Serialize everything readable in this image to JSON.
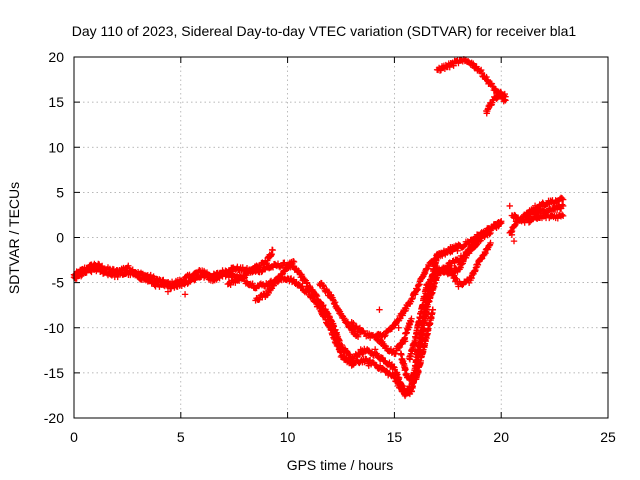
{
  "chart_data": {
    "type": "scatter",
    "title": "Day 110 of 2023, Sidereal Day-to-day VTEC variation (SDTVAR) for receiver bla1",
    "xlabel": "GPS time / hours",
    "ylabel": "SDTVAR / TECUs",
    "xlim": [
      0,
      25
    ],
    "ylim": [
      -20,
      20
    ],
    "xticks": [
      "0",
      "5",
      "10",
      "15",
      "20",
      "25"
    ],
    "yticks": [
      "-20",
      "-15",
      "-10",
      "-5",
      "0",
      "5",
      "10",
      "15",
      "20"
    ],
    "grid": true,
    "marker": "+",
    "series": [
      {
        "name": "SDTVAR",
        "color": "#ff0000",
        "tracks": [
          [
            [
              0,
              -4.2
            ],
            [
              0.5,
              -3.5
            ],
            [
              1,
              -3
            ],
            [
              1.5,
              -3.5
            ],
            [
              2,
              -3.8
            ],
            [
              2.5,
              -3.3
            ],
            [
              3,
              -4
            ],
            [
              3.5,
              -4.3
            ],
            [
              4,
              -4.8
            ],
            [
              4.5,
              -5.2
            ],
            [
              5,
              -4.8
            ],
            [
              5.5,
              -4.2
            ],
            [
              6,
              -3.7
            ],
            [
              6.5,
              -4.3
            ],
            [
              7,
              -3.8
            ],
            [
              7.5,
              -3.4
            ],
            [
              8,
              -3.6
            ],
            [
              8.5,
              -3.8
            ],
            [
              9,
              -3.4
            ],
            [
              9.5,
              -3.1
            ],
            [
              10,
              -3
            ],
            [
              10.5,
              -3.8
            ],
            [
              11,
              -5.5
            ],
            [
              11.5,
              -7
            ],
            [
              12,
              -9
            ],
            [
              12.5,
              -12
            ],
            [
              13,
              -13.5
            ],
            [
              13.5,
              -12.5
            ],
            [
              14,
              -12.8
            ],
            [
              14.5,
              -13.5
            ],
            [
              15,
              -14.5
            ],
            [
              15.5,
              -17.2
            ],
            [
              15.8,
              -16.5
            ],
            [
              16,
              -14
            ],
            [
              16.5,
              -7
            ],
            [
              17,
              -2
            ],
            [
              18,
              -1.2
            ],
            [
              19,
              0.3
            ],
            [
              20,
              1.6
            ]
          ],
          [
            [
              0,
              -4.6
            ],
            [
              0.5,
              -3.9
            ],
            [
              1,
              -3.5
            ],
            [
              1.5,
              -3.9
            ],
            [
              2,
              -4.2
            ],
            [
              2.5,
              -3.9
            ],
            [
              3,
              -4.3
            ],
            [
              3.5,
              -4.8
            ],
            [
              4,
              -5.4
            ],
            [
              4.5,
              -5.4
            ],
            [
              5,
              -5.2
            ],
            [
              5.5,
              -4.7
            ],
            [
              6,
              -4.2
            ],
            [
              6.5,
              -4.6
            ],
            [
              7,
              -4.1
            ],
            [
              7.5,
              -4.2
            ],
            [
              8,
              -4.8
            ],
            [
              8.5,
              -5.4
            ],
            [
              9,
              -5.2
            ],
            [
              9.5,
              -4.8
            ],
            [
              10,
              -4.5
            ],
            [
              10.5,
              -5.2
            ],
            [
              11,
              -6.2
            ],
            [
              11.5,
              -7.8
            ],
            [
              12,
              -10
            ],
            [
              12.5,
              -13
            ],
            [
              13,
              -14.1
            ],
            [
              13.5,
              -13.6
            ],
            [
              14,
              -13.9
            ],
            [
              14.5,
              -14.7
            ],
            [
              15,
              -15.5
            ],
            [
              15.5,
              -17.5
            ],
            [
              15.8,
              -17
            ],
            [
              16,
              -15
            ],
            [
              16.5,
              -8
            ],
            [
              17,
              -4.2
            ],
            [
              17.5,
              -3.1
            ],
            [
              18,
              -2.5
            ],
            [
              18.5,
              -1.5
            ],
            [
              19,
              -0.2
            ],
            [
              19.5,
              1
            ],
            [
              20,
              1.8
            ]
          ],
          [
            [
              7.2,
              -5.2
            ],
            [
              8,
              -4.2
            ],
            [
              8.5,
              -3.3
            ],
            [
              9,
              -2.8
            ],
            [
              9.3,
              -1.4
            ]
          ],
          [
            [
              8.5,
              -6.8
            ],
            [
              9,
              -6.3
            ],
            [
              9.5,
              -4.6
            ],
            [
              10,
              -3.2
            ],
            [
              10.3,
              -2.7
            ]
          ],
          [
            [
              11.5,
              -5
            ],
            [
              12,
              -6.5
            ],
            [
              12.5,
              -8.5
            ],
            [
              13,
              -10.2
            ],
            [
              13.3,
              -11
            ]
          ],
          [
            [
              13,
              -9.5
            ],
            [
              13.5,
              -10.5
            ],
            [
              14,
              -11
            ],
            [
              14.5,
              -10.8
            ],
            [
              15,
              -9.8
            ],
            [
              15.5,
              -8
            ],
            [
              16,
              -6
            ],
            [
              16.5,
              -3.5
            ],
            [
              17,
              -2
            ],
            [
              17.5,
              -1.5
            ],
            [
              18,
              -0.8
            ]
          ],
          [
            [
              14.2,
              -11.2
            ],
            [
              14.6,
              -12.2
            ],
            [
              15,
              -12.8
            ],
            [
              15.4,
              -11.5
            ],
            [
              15.8,
              -9
            ]
          ],
          [
            [
              15.7,
              -13.5
            ],
            [
              16,
              -11
            ],
            [
              16.5,
              -5.5
            ],
            [
              17,
              -3.5
            ],
            [
              17.5,
              -3.8
            ],
            [
              18,
              -3.5
            ],
            [
              18.5,
              -1.5
            ],
            [
              19,
              0
            ],
            [
              19.5,
              0.5
            ]
          ],
          [
            [
              17.5,
              -3.2
            ],
            [
              18,
              -5.2
            ],
            [
              18.5,
              -4.8
            ],
            [
              19,
              -2.5
            ],
            [
              19.5,
              -0.6
            ]
          ],
          [
            [
              15.3,
              -13
            ],
            [
              15.6,
              -15.5
            ],
            [
              16,
              -15.8
            ],
            [
              16.3,
              -13
            ],
            [
              16.8,
              -8
            ]
          ],
          [
            [
              20.4,
              0.5
            ],
            [
              20.8,
              2
            ],
            [
              21.5,
              2.7
            ],
            [
              22.2,
              3
            ],
            [
              22.9,
              3.5
            ]
          ],
          [
            [
              20.5,
              2.6
            ],
            [
              21,
              1.8
            ],
            [
              21.5,
              2
            ],
            [
              22,
              2.3
            ],
            [
              22.9,
              2.4
            ]
          ],
          [
            [
              21.2,
              2.8
            ],
            [
              21.8,
              3.6
            ],
            [
              22.4,
              4
            ],
            [
              22.9,
              4.2
            ]
          ],
          [
            [
              17,
              18.6
            ],
            [
              17.5,
              19
            ],
            [
              18,
              19.5
            ],
            [
              18.5,
              19.5
            ],
            [
              19,
              18.5
            ],
            [
              19.5,
              17
            ],
            [
              20,
              15.5
            ],
            [
              20.2,
              15.2
            ]
          ],
          [
            [
              19.3,
              13.8
            ],
            [
              19.6,
              15.2
            ],
            [
              20,
              16
            ],
            [
              20.2,
              15.6
            ]
          ]
        ],
        "outliers": [
          [
            12.9,
            -13.4
          ],
          [
            13.5,
            -12.9
          ],
          [
            14.1,
            -12.4
          ],
          [
            14.6,
            -14.8
          ],
          [
            14.3,
            -8
          ],
          [
            15.2,
            -10
          ],
          [
            15.5,
            -11.5
          ],
          [
            20.4,
            3.5
          ],
          [
            20.5,
            0.3
          ],
          [
            20.6,
            -0.4
          ],
          [
            5.2,
            -6.3
          ],
          [
            4.7,
            -5.5
          ],
          [
            4.4,
            -6
          ],
          [
            13.8,
            -14.2
          ]
        ]
      }
    ]
  }
}
